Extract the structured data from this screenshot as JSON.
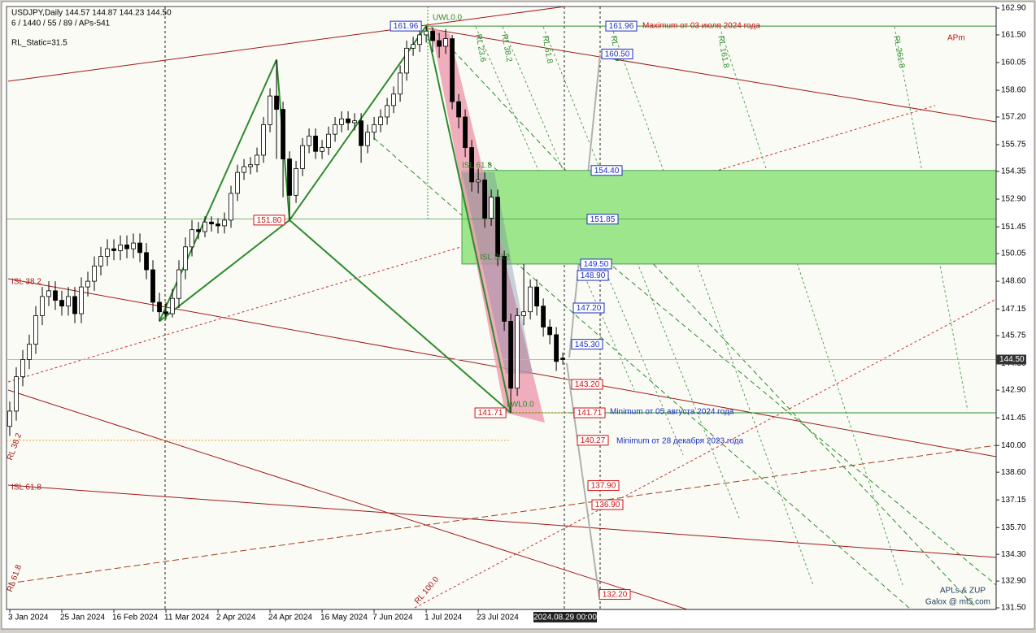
{
  "chart_data": {
    "type": "candlestick",
    "title": "USDJPY,Daily  144.57 144.87 144.23 144.50",
    "subtitle": "6 / 1440 / 55 / 89 / APs-541",
    "static_note": "RL_Static=31.5",
    "corner_label": "APm",
    "credit": "APLs & ZUP",
    "credit_site": "Galox @ mt5.com",
    "time_marker": "2024.08.29 00:00",
    "xlim": [
      -0.5,
      151.6
    ],
    "ylim": [
      131.5,
      162.9
    ],
    "xticks": [
      {
        "value": 0,
        "label": "3 Jan 2024"
      },
      {
        "value": 8,
        "label": "25 Jan 2024"
      },
      {
        "value": 16,
        "label": "16 Feb 2024"
      },
      {
        "value": 24,
        "label": "11 Mar 2024"
      },
      {
        "value": 32,
        "label": "2 Apr 2024"
      },
      {
        "value": 40,
        "label": "24 Apr 2024"
      },
      {
        "value": 48,
        "label": "16 May 2024"
      },
      {
        "value": 56,
        "label": "7 Jun 2024"
      },
      {
        "value": 64,
        "label": "1 Jul 2024"
      },
      {
        "value": 72,
        "label": "23 Jul 2024"
      }
    ],
    "yticks": [
      {
        "value": 162.9,
        "label": "162.90"
      },
      {
        "value": 161.5,
        "label": "161.50"
      },
      160.05,
      {
        "value": 158.6,
        "label": "158.60"
      },
      {
        "value": 157.2,
        "label": "157.20"
      },
      155.75,
      154.35,
      {
        "value": 152.9,
        "label": "152.90"
      },
      151.45,
      150.05,
      {
        "value": 148.6,
        "label": "148.60"
      },
      147.15,
      145.75,
      {
        "value": 144.3,
        "label": "144.30"
      },
      {
        "value": 142.9,
        "label": "142.90"
      },
      141.45,
      {
        "value": 140,
        "label": "140.00"
      },
      {
        "value": 138.6,
        "label": "138.60"
      },
      137.15,
      {
        "value": 135.7,
        "label": "135.70"
      },
      {
        "value": 134.3,
        "label": "134.30"
      },
      {
        "value": 132.9,
        "label": "132.90"
      },
      {
        "value": 131.5,
        "label": "131.50"
      }
    ],
    "current_price": {
      "value": 144.5,
      "label": "144.50"
    },
    "open": [
      141.0,
      141.8,
      143.6,
      144.5,
      145.3,
      146.8,
      147.8,
      148.1,
      147.6,
      147.3,
      147.8,
      146.9,
      148.3,
      148.6,
      149.4,
      149.9,
      150.3,
      150.2,
      150.5,
      150.3,
      150.6,
      150.1,
      149.2,
      147.5,
      147.0,
      146.9,
      147.7,
      149.2,
      150.4,
      151.3,
      151.2,
      151.7,
      151.6,
      151.5,
      151.8,
      153.2,
      154.3,
      154.6,
      154.7,
      155.2,
      156.8,
      158.3,
      157.6,
      155.0,
      153.1,
      154.5,
      155.7,
      156.2,
      155.4,
      155.6,
      156.3,
      156.8,
      157.1,
      156.9,
      157.0,
      155.7,
      156.4,
      156.8,
      157.2,
      157.8,
      158.4,
      159.5,
      160.8,
      161.0,
      161.5,
      161.7,
      161.2,
      160.9,
      161.3,
      158.0,
      157.2,
      155.6,
      153.8,
      153.9,
      151.9,
      153.0,
      149.9,
      146.5,
      143.0,
      146.8,
      147.0,
      148.3,
      147.3,
      146.2,
      145.8,
      144.57
    ],
    "high": [
      142.3,
      144.1,
      145.0,
      145.8,
      147.3,
      148.3,
      148.6,
      148.6,
      148.1,
      148.3,
      148.3,
      148.8,
      149.1,
      149.9,
      150.4,
      150.8,
      150.8,
      151.0,
      151.0,
      151.1,
      151.1,
      150.6,
      149.7,
      148.0,
      147.5,
      148.2,
      149.7,
      150.9,
      151.8,
      151.7,
      152.0,
      152.0,
      151.9,
      152.2,
      153.6,
      154.7,
      155.0,
      155.1,
      155.6,
      157.2,
      158.7,
      160.2,
      158.0,
      155.4,
      154.9,
      156.1,
      156.6,
      156.6,
      156.0,
      156.7,
      157.2,
      157.5,
      157.5,
      157.4,
      157.4,
      156.8,
      157.2,
      157.6,
      158.2,
      158.8,
      159.9,
      161.2,
      161.4,
      161.8,
      161.96,
      161.9,
      161.6,
      161.8,
      161.5,
      158.4,
      157.6,
      156.0,
      154.5,
      154.3,
      153.4,
      153.4,
      150.2,
      146.9,
      147.2,
      149.5,
      148.7,
      148.7,
      147.7,
      146.6,
      146.2,
      144.87
    ],
    "low": [
      140.5,
      141.3,
      143.1,
      144.0,
      144.8,
      146.3,
      147.3,
      147.1,
      146.8,
      146.8,
      146.4,
      146.4,
      147.8,
      148.1,
      148.9,
      149.4,
      149.7,
      149.7,
      149.8,
      149.8,
      149.6,
      148.7,
      147.0,
      146.5,
      146.6,
      146.7,
      147.2,
      148.7,
      149.9,
      150.8,
      150.9,
      151.2,
      151.1,
      151.1,
      151.4,
      152.8,
      153.9,
      154.2,
      154.3,
      154.8,
      156.4,
      155.0,
      153.0,
      151.8,
      152.7,
      154.1,
      155.3,
      155.0,
      155.0,
      155.2,
      155.9,
      156.4,
      156.5,
      156.5,
      154.8,
      155.3,
      156.0,
      156.4,
      156.8,
      157.4,
      158.0,
      159.1,
      160.4,
      160.6,
      161.1,
      160.6,
      160.3,
      160.5,
      157.6,
      156.6,
      155.1,
      153.3,
      153.2,
      151.4,
      151.5,
      149.4,
      146.0,
      141.71,
      142.6,
      146.3,
      146.6,
      146.8,
      145.7,
      145.3,
      143.9,
      144.23
    ],
    "close": [
      141.8,
      143.6,
      144.5,
      145.3,
      146.8,
      147.8,
      148.1,
      147.6,
      147.3,
      147.8,
      146.9,
      148.3,
      148.6,
      149.4,
      149.9,
      150.3,
      150.2,
      150.5,
      150.3,
      150.6,
      150.1,
      149.2,
      147.5,
      147.0,
      146.9,
      147.7,
      149.2,
      150.4,
      151.3,
      151.2,
      151.7,
      151.6,
      151.5,
      151.8,
      153.2,
      154.3,
      154.6,
      154.7,
      155.2,
      156.8,
      158.3,
      157.6,
      155.0,
      153.1,
      154.5,
      155.7,
      156.2,
      155.4,
      155.6,
      156.3,
      156.8,
      157.1,
      156.9,
      157.0,
      155.7,
      156.4,
      156.8,
      157.2,
      157.8,
      158.4,
      159.5,
      160.8,
      161.0,
      161.5,
      161.7,
      161.2,
      160.9,
      161.3,
      158.0,
      157.2,
      155.6,
      153.8,
      153.9,
      151.9,
      153.0,
      149.9,
      146.5,
      143.0,
      146.8,
      147.0,
      148.3,
      147.3,
      146.2,
      145.8,
      144.4,
      144.5
    ],
    "pattern": {
      "color": "#2e8b2e",
      "x": [
        23,
        41,
        43,
        64,
        77
      ],
      "y": [
        146.5,
        160.2,
        151.8,
        161.96,
        141.71
      ]
    },
    "point_labels": [
      161.96,
      {
        "value": 151.8,
        "label": "151.80"
      },
      141.71
    ],
    "zone": {
      "color": "#9ee68c",
      "top": {
        "value": 154.4,
        "label": "154.40"
      },
      "bottom": {
        "value": 149.5,
        "label": "149.50"
      }
    },
    "blue_levels": {
      "color": "#1a2fc0",
      "values": [
        161.96,
        {
          "value": 160.5,
          "label": "160.50"
        },
        {
          "value": 154.4,
          "label": "154.40"
        },
        151.85,
        {
          "value": 149.5,
          "label": "149.50"
        },
        {
          "value": 148.9,
          "label": "148.90"
        },
        {
          "value": 147.2,
          "label": "147.20"
        },
        {
          "value": 145.3,
          "label": "145.30"
        }
      ]
    },
    "red_levels": {
      "color": "#d01010",
      "values": [
        {
          "value": 143.2,
          "label": "143.20"
        },
        141.71,
        140.27,
        {
          "value": 137.9,
          "label": "137.90"
        },
        {
          "value": 136.9,
          "label": "136.90"
        },
        {
          "value": 132.2,
          "label": "132.20"
        }
      ]
    },
    "max_note": "Maximum от 03 июля 2024 года",
    "min_note_1": "Minimum от 05 августа 2024 года",
    "min_note_2": "Minimum от 28 декабря 2023 года",
    "line_labels": [
      "ISL 38.2",
      "RL 38.2",
      "ISL 61.8",
      "RL 61.8",
      "RL 100.0",
      "UWL0.0",
      "LWL0.0",
      "ISL 61.8",
      "ISL 38.2",
      "RL 23.6",
      "RL 38.2",
      "RL 61.8",
      "RL 100",
      "RL 161.8",
      "RL 261.8"
    ]
  }
}
